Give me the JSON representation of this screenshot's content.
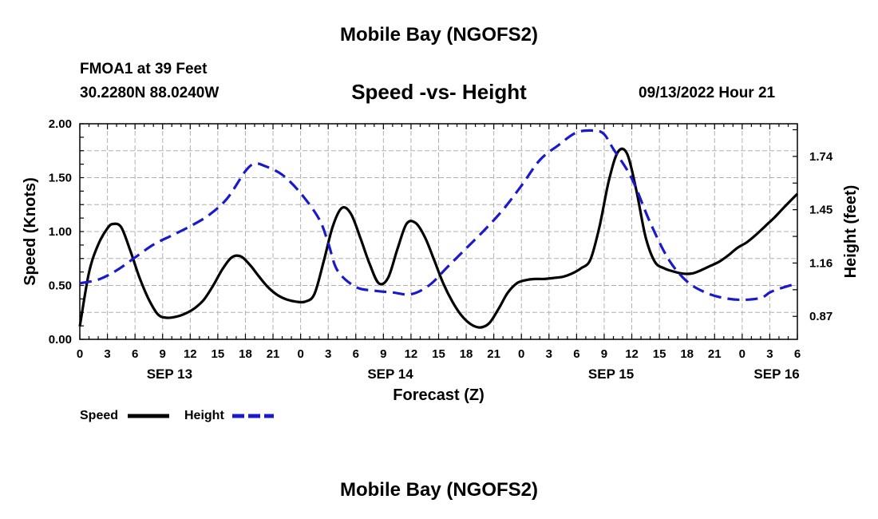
{
  "header": {
    "title": "Mobile Bay (NGOFS2)",
    "station": "FMOA1 at 39 Feet",
    "coords": "30.2280N  88.0240W",
    "chart_title": "Speed -vs- Height",
    "datetime": "09/13/2022 Hour 21"
  },
  "footer": {
    "title": "Mobile Bay (NGOFS2)"
  },
  "colors": {
    "speed": "#000000",
    "height": "#1a1acc",
    "grid": "#b0b0b0"
  },
  "chart_data": {
    "type": "line",
    "title": "Speed -vs- Height",
    "xlabel": "Forecast (Z)",
    "ylabel": "Speed (Knots)",
    "y2label": "Height (feet)",
    "xlim": [
      0,
      78
    ],
    "ylim": [
      0,
      2
    ],
    "y2lim": [
      0.745,
      1.9175
    ],
    "y_ticks": [
      "0.00",
      "0.50",
      "1.00",
      "1.50",
      "2.00"
    ],
    "y2_ticks": [
      "0.87",
      "1.16",
      "1.45",
      "1.74"
    ],
    "x_tick_labels": [
      "0",
      "3",
      "6",
      "9",
      "12",
      "15",
      "18",
      "21",
      "0",
      "3",
      "6",
      "9",
      "12",
      "15",
      "18",
      "21",
      "0",
      "3",
      "6",
      "9",
      "12",
      "15",
      "18",
      "21",
      "0",
      "3",
      "6"
    ],
    "date_labels": [
      {
        "label": "SEP 13",
        "x": 9.75
      },
      {
        "label": "SEP 14",
        "x": 33.75
      },
      {
        "label": "SEP 15",
        "x": 57.75
      },
      {
        "label": "SEP 16",
        "x": 75.75
      }
    ],
    "legend": [
      "Speed",
      "Height"
    ],
    "grid": true,
    "series": [
      {
        "name": "Speed",
        "axis": "left",
        "style": "solid",
        "x": [
          0,
          1,
          2,
          3,
          3.6,
          4.5,
          5.5,
          6.5,
          7.5,
          8.5,
          9.5,
          10.5,
          11.5,
          12.5,
          13.5,
          14.5,
          15.5,
          16.5,
          17.5,
          18.5,
          19.5,
          20.5,
          21.5,
          22.5,
          23.5,
          24.5,
          25.5,
          26.5,
          27.5,
          28.5,
          29.5,
          30.5,
          31.5,
          32.5,
          33.5,
          34.5,
          35.5,
          36.5,
          37.5,
          38.5,
          39.5,
          40.5,
          41.5,
          42.5,
          43.5,
          44.5,
          45.5,
          46.5,
          47.5,
          48.5,
          49.5,
          50.5,
          51.5,
          52.5,
          53.5,
          54.5,
          55.5,
          56.5,
          57.5,
          58.5,
          59.5,
          60.5,
          61.5,
          62.5,
          63.5,
          64.5,
          65.5,
          66.5,
          67.5,
          68.5,
          69.5,
          70.5,
          71.5,
          72.5,
          73.5,
          74.5,
          75.5,
          76.5,
          78
        ],
        "values": [
          0.12,
          0.62,
          0.88,
          1.03,
          1.07,
          1.04,
          0.82,
          0.57,
          0.37,
          0.23,
          0.2,
          0.21,
          0.24,
          0.29,
          0.37,
          0.5,
          0.65,
          0.76,
          0.77,
          0.69,
          0.58,
          0.48,
          0.41,
          0.37,
          0.35,
          0.35,
          0.42,
          0.72,
          1.05,
          1.22,
          1.16,
          0.94,
          0.7,
          0.52,
          0.57,
          0.83,
          1.07,
          1.08,
          0.95,
          0.74,
          0.52,
          0.35,
          0.22,
          0.14,
          0.11,
          0.15,
          0.28,
          0.43,
          0.52,
          0.55,
          0.56,
          0.56,
          0.57,
          0.58,
          0.61,
          0.66,
          0.74,
          1.05,
          1.47,
          1.74,
          1.72,
          1.38,
          0.95,
          0.72,
          0.66,
          0.63,
          0.61,
          0.61,
          0.64,
          0.68,
          0.72,
          0.78,
          0.85,
          0.9,
          0.97,
          1.05,
          1.13,
          1.22,
          1.35
        ]
      },
      {
        "name": "Height",
        "axis": "right",
        "style": "dashed",
        "x": [
          0,
          2,
          4,
          6,
          8,
          10,
          12,
          14,
          16,
          18,
          19,
          20,
          22,
          24,
          26,
          27,
          28,
          30,
          32,
          34,
          36,
          38,
          40,
          42,
          44,
          46,
          48,
          50,
          52,
          54,
          56,
          57,
          58,
          60,
          62,
          64,
          66,
          68,
          70,
          72,
          74,
          75,
          76,
          78
        ],
        "values": [
          1.05,
          1.07,
          1.12,
          1.19,
          1.26,
          1.31,
          1.36,
          1.42,
          1.51,
          1.66,
          1.7,
          1.69,
          1.64,
          1.54,
          1.4,
          1.27,
          1.12,
          1.03,
          1.01,
          1.0,
          0.99,
          1.04,
          1.14,
          1.24,
          1.34,
          1.45,
          1.58,
          1.72,
          1.8,
          1.87,
          1.88,
          1.86,
          1.78,
          1.62,
          1.38,
          1.18,
          1.06,
          1.0,
          0.97,
          0.96,
          0.97,
          1.0,
          1.02,
          1.05
        ]
      }
    ]
  }
}
